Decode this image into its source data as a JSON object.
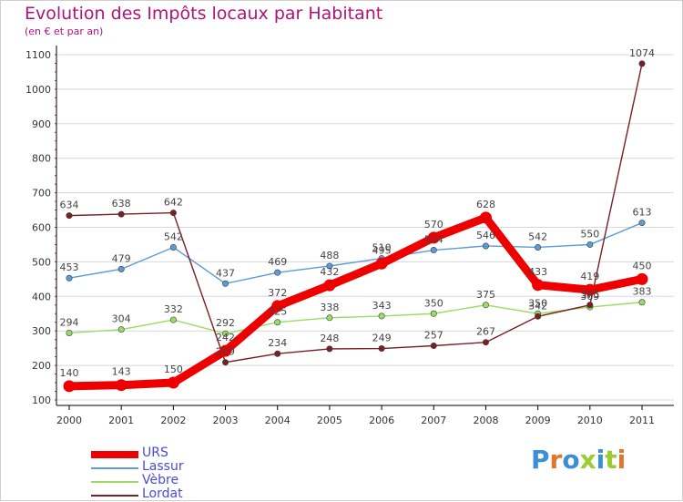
{
  "title": "Evolution des Impôts locaux par Habitant",
  "subtitle": "(en € et par an)",
  "logo": {
    "text": "Proxiti",
    "letter_colors": [
      "#3a8fd8",
      "#e0752b",
      "#3a8fd8",
      "#9acd32",
      "#3a8fd8",
      "#9acd32",
      "#e0752b"
    ]
  },
  "colors": {
    "title": "#b0137a",
    "axis": "#000000",
    "grid": "#d8d8d8",
    "label": "#555555"
  },
  "chart_data": {
    "type": "line",
    "title": "Evolution des Impôts locaux par Habitant",
    "subtitle": "(en € et par an)",
    "xlabel": "",
    "ylabel": "",
    "ylim": [
      100,
      1100
    ],
    "yticks": [
      100,
      200,
      300,
      400,
      500,
      600,
      700,
      800,
      900,
      1000,
      1100
    ],
    "grid": "horizontal",
    "categories": [
      "2000",
      "2001",
      "2002",
      "2003",
      "2004",
      "2005",
      "2006",
      "2007",
      "2008",
      "2009",
      "2010",
      "2011"
    ],
    "series": [
      {
        "name": "URS",
        "color": "#ee0000",
        "values": [
          140,
          143,
          150,
          242,
          372,
          432,
          495,
          570,
          628,
          433,
          419,
          450
        ]
      },
      {
        "name": "Lassur",
        "color": "#5a9bd8",
        "values": [
          453,
          479,
          542,
          437,
          469,
          488,
          510,
          534,
          546,
          542,
          550,
          613
        ]
      },
      {
        "name": "Vèbre",
        "color": "#99dd66",
        "values": [
          294,
          304,
          332,
          292,
          325,
          338,
          343,
          350,
          375,
          350,
          369,
          383
        ]
      },
      {
        "name": "Lordat",
        "color": "#7a1f22",
        "values": [
          634,
          638,
          642,
          209,
          234,
          248,
          249,
          257,
          267,
          342,
          375,
          1074
        ]
      }
    ]
  }
}
